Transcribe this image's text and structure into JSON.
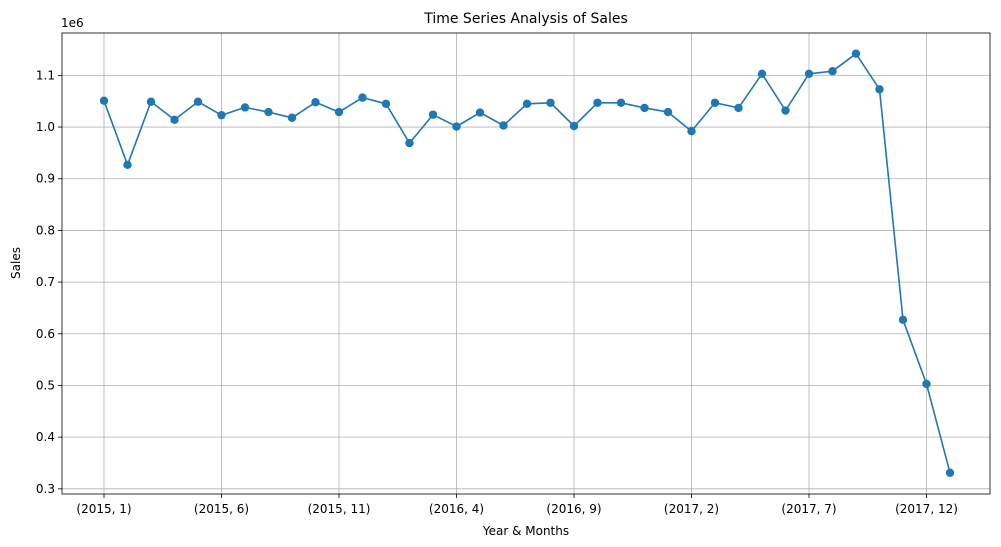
{
  "chart_data": {
    "type": "line",
    "title": "Time Series Analysis of Sales",
    "xlabel": "Year & Months",
    "ylabel": "Sales",
    "y_scale_label": "1e6",
    "ylim": [
      0.29,
      1.182
    ],
    "yticks": [
      0.3,
      0.4,
      0.5,
      0.6,
      0.7,
      0.8,
      0.9,
      1.0,
      1.1
    ],
    "ytick_labels": [
      "0.3",
      "0.4",
      "0.5",
      "0.6",
      "0.7",
      "0.8",
      "0.9",
      "1.0",
      "1.1"
    ],
    "grid": true,
    "line_color": "#1f77b4",
    "categories": [
      "(2015, 1)",
      "(2015, 2)",
      "(2015, 3)",
      "(2015, 4)",
      "(2015, 5)",
      "(2015, 6)",
      "(2015, 7)",
      "(2015, 8)",
      "(2015, 9)",
      "(2015, 10)",
      "(2015, 11)",
      "(2015, 12)",
      "(2016, 1)",
      "(2016, 2)",
      "(2016, 3)",
      "(2016, 4)",
      "(2016, 5)",
      "(2016, 6)",
      "(2016, 7)",
      "(2016, 8)",
      "(2016, 9)",
      "(2016, 10)",
      "(2016, 11)",
      "(2016, 12)",
      "(2017, 1)",
      "(2017, 2)",
      "(2017, 3)",
      "(2017, 4)",
      "(2017, 5)",
      "(2017, 6)",
      "(2017, 7)",
      "(2017, 8)",
      "(2017, 9)",
      "(2017, 10)",
      "(2017, 11)",
      "(2017, 12)",
      "(2018, 1)"
    ],
    "tick_indices": [
      0,
      5,
      10,
      15,
      20,
      25,
      30,
      35
    ],
    "series": [
      {
        "values": [
          1.051,
          0.927,
          1.049,
          1.014,
          1.049,
          1.023,
          1.038,
          1.029,
          1.018,
          1.048,
          1.029,
          1.057,
          1.045,
          0.969,
          1.024,
          1.001,
          1.028,
          1.003,
          1.045,
          1.047,
          1.002,
          1.047,
          1.047,
          1.037,
          1.029,
          0.992,
          1.047,
          1.037,
          1.103,
          1.032,
          1.103,
          1.108,
          1.142,
          1.073,
          0.627,
          0.503,
          0.331
        ]
      }
    ]
  }
}
